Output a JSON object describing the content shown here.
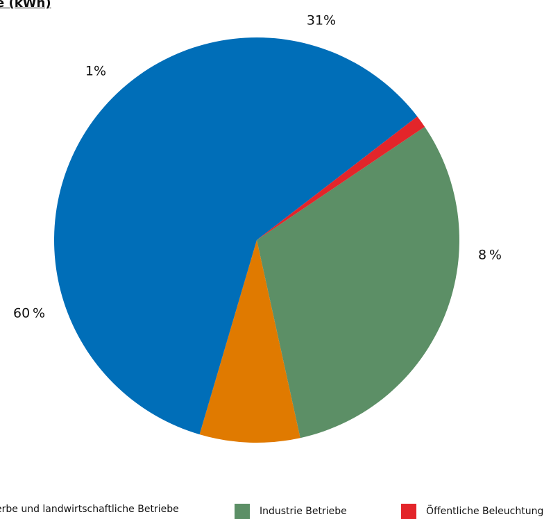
{
  "chart_data": {
    "type": "pie",
    "title": "e (kWh)",
    "slices": [
      {
        "label": "Industrie Betriebe",
        "value": 31,
        "value_label": "31%",
        "color": "#5c8f66"
      },
      {
        "label": "",
        "value": 8,
        "value_label": "8 %",
        "color": "#e07a00"
      },
      {
        "label": "erbe und landwirtschaftliche Betriebe",
        "value": 60,
        "value_label": "60 %",
        "color": "#006eb8"
      },
      {
        "label": "Öffentliche Beleuchtung",
        "value": 1,
        "value_label": "1%",
        "color": "#e3252a"
      }
    ],
    "start_angle_deg": 56,
    "legend_position": "bottom"
  },
  "legend": [
    {
      "label": "erbe und landwirtschaftliche Betriebe",
      "color": "#006eb8"
    },
    {
      "label": "Industrie Betriebe",
      "color": "#5c8f66"
    },
    {
      "label": "Öffentliche Beleuchtung",
      "color": "#e3252a"
    }
  ]
}
